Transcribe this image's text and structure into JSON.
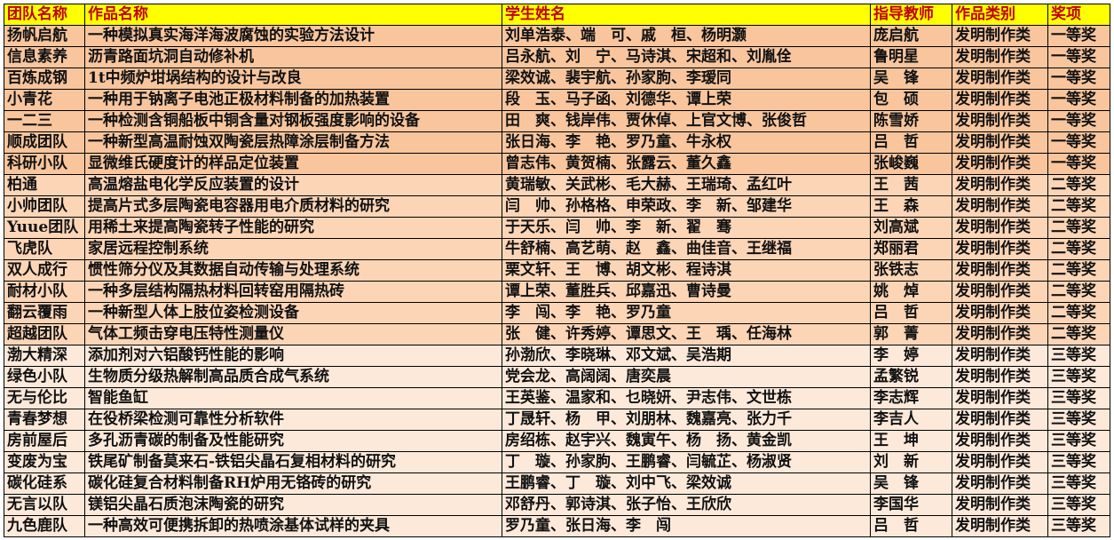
{
  "headers": [
    "团队名称",
    "作品名称",
    "学生姓名",
    "指导教师",
    "作品类别",
    "奖项"
  ],
  "colors": {
    "header_bg": "#ffff00",
    "header_text": "#c00000",
    "first_prize_bg": "#f8c59d",
    "second_prize_bg": "#fcd5b6",
    "third_prize_bg": "#fde9da"
  },
  "rows": [
    [
      "扬帆启航",
      "一种模拟真实海洋海波腐蚀的实验方法设计",
      "刘单浩泰、端　可、戚　桓、杨明灏",
      "庞启航",
      "发明制作类",
      "一等奖"
    ],
    [
      "信息素养",
      "沥青路面坑洞自动修补机",
      "吕永航、刘　宁、马诗淇、宋超和、刘胤佺",
      "鲁明星",
      "发明制作类",
      "一等奖"
    ],
    [
      "百炼成钢",
      "1t中频炉坩埚结构的设计与改良",
      "梁效诚、裴宇航、孙家朐、李瑷同",
      "吴　锋",
      "发明制作类",
      "一等奖"
    ],
    [
      "小青花",
      "一种用于钠离子电池正极材料制备的加热装置",
      "段　玉、马子函、刘德华、谭上荣",
      "包　硕",
      "发明制作类",
      "一等奖"
    ],
    [
      "一二三",
      "一种检测含铜船板中铜含量对钢板强度影响的设备",
      "田　爽、钱岸伟、贾休倬、上官文博、张俊哲",
      "陈雪娇",
      "发明制作类",
      "一等奖"
    ],
    [
      "顺成团队",
      "一种新型高温耐蚀双陶瓷层热障涂层制备方法",
      "张日海、李　艳、罗乃童、牛永权",
      "吕　哲",
      "发明制作类",
      "一等奖"
    ],
    [
      "科研小队",
      "显微维氏硬度计的样品定位装置",
      "曾志伟、黄贺楠、张露云、董久鑫",
      "张峻巍",
      "发明制作类",
      "一等奖"
    ],
    [
      "柏通",
      "高温熔盐电化学反应装置的设计",
      "黄瑞敏、关武彬、毛大赫、王瑞琦、孟红叶",
      "王　茜",
      "发明制作类",
      "二等奖"
    ],
    [
      "小帅团队",
      "提高片式多层陶瓷电容器用电介质材料的研究",
      "闫　帅、孙格格、申荣政、李　新、邹建华",
      "王　森",
      "发明制作类",
      "二等奖"
    ],
    [
      "Yuue团队",
      "用稀土来提高陶瓷转子性能的研究",
      "于天乐、闫　帅、李　新、翟　骞",
      "刘高斌",
      "发明制作类",
      "二等奖"
    ],
    [
      "飞虎队",
      "家居远程控制系统",
      "牛舒楠、高艺萌、赵　鑫、曲佳音、王继福",
      "郑丽君",
      "发明制作类",
      "二等奖"
    ],
    [
      "双人成行",
      "惯性筛分仪及其数据自动传输与处理系统",
      "栗文轩、王　博、胡文彬、程诗淇",
      "张铁志",
      "发明制作类",
      "二等奖"
    ],
    [
      "耐材小队",
      "一种多层结构隔热材料回转窑用隔热砖",
      "谭上荣、董胜兵、邱嘉迅、曹诗曼",
      "姚　焯",
      "发明制作类",
      "二等奖"
    ],
    [
      "翻云覆雨",
      "一种新型人体上肢位姿检测设备",
      "李　闯、李　艳、罗乃童",
      "吕　哲",
      "发明制作类",
      "二等奖"
    ],
    [
      "超越团队",
      "气体工频击穿电压特性测量仪",
      "张　健、许秀婷、谭思文、王　瑀、任海林",
      "郭　菁",
      "发明制作类",
      "二等奖"
    ],
    [
      "渤大精深",
      "添加剂对六铝酸钙性能的影响",
      "孙渤欣、李晓琳、邓文斌、吴浩期",
      "李　婷",
      "发明制作类",
      "三等奖"
    ],
    [
      "绿色小队",
      "生物质分级热解制高品质合成气系统",
      "党会龙、高阔阔、唐奕晨",
      "孟繁锐",
      "发明制作类",
      "三等奖"
    ],
    [
      "无与伦比",
      "智能鱼缸",
      "王英鉴、温家和、乜晓妍、尹志伟、文世栋",
      "李志辉",
      "发明制作类",
      "三等奖"
    ],
    [
      "青春梦想",
      "在役桥梁检测可靠性分析软件",
      "丁晟轩、杨　甲、刘朋林、魏嘉亮、张力千",
      "李吉人",
      "发明制作类",
      "三等奖"
    ],
    [
      "房前屋后",
      "多孔沥青碳的制备及性能研究",
      "房绍栋、赵宇兴、魏寅午、杨　扬、黄金凯",
      "王　坤",
      "发明制作类",
      "三等奖"
    ],
    [
      "变废为宝",
      "铁尾矿制备莫来石-铁铝尖晶石复相材料的研究",
      "丁　璇、孙家朐、王鹏睿、闫毓芷、杨淑贤",
      "刘　新",
      "发明制作类",
      "三等奖"
    ],
    [
      "碳化硅系",
      "碳化硅复合材料制备RH炉用无铬砖的研究",
      "王鹏睿、丁　璇、刘中飞、梁效诚",
      "吴　锋",
      "发明制作类",
      "三等奖"
    ],
    [
      "无言以队",
      "镁铝尖晶石质泡沫陶瓷的研究",
      "邓舒丹、郭诗淇、张子怡、王欣欣",
      "李国华",
      "发明制作类",
      "三等奖"
    ],
    [
      "九色鹿队",
      "一种高效可便携拆卸的热喷涂基体试样的夹具",
      "罗乃童、张日海、李　闯",
      "吕　哲",
      "发明制作类",
      "三等奖"
    ]
  ]
}
